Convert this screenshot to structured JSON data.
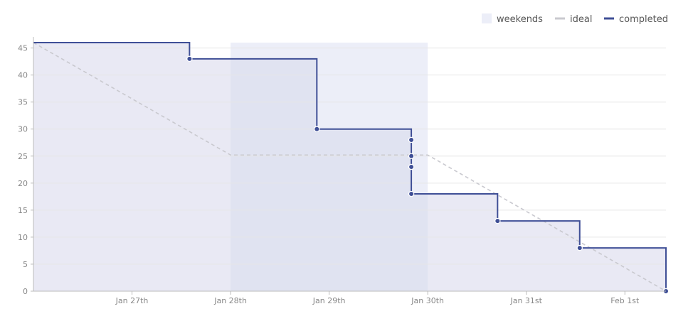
{
  "chart_data": {
    "type": "line",
    "title": "",
    "xlabel": "",
    "ylabel": "",
    "ylim": [
      0,
      46
    ],
    "yticks": [
      0,
      5,
      10,
      15,
      20,
      25,
      30,
      35,
      40,
      45
    ],
    "xlim": [
      "2019-01-26T00:00",
      "2019-02-01T10:00"
    ],
    "xticks": [
      {
        "x": "2019-01-27T00:00",
        "label": "Jan 27th"
      },
      {
        "x": "2019-01-28T00:00",
        "label": "Jan 28th"
      },
      {
        "x": "2019-01-29T00:00",
        "label": "Jan 29th"
      },
      {
        "x": "2019-01-30T00:00",
        "label": "Jan 30th"
      },
      {
        "x": "2019-01-31T00:00",
        "label": "Jan 31st"
      },
      {
        "x": "2019-02-01T00:00",
        "label": "Feb 1st"
      }
    ],
    "grid": true,
    "legend_position": "top-right",
    "legend": [
      {
        "key": "weekends",
        "label": "weekends"
      },
      {
        "key": "ideal",
        "label": "ideal"
      },
      {
        "key": "completed",
        "label": "completed"
      }
    ],
    "weekends": [
      {
        "start": "2019-01-28T00:00",
        "end": "2019-01-30T00:00"
      }
    ],
    "ideal": {
      "name": "ideal",
      "style": "dashed",
      "points": [
        {
          "x": "2019-01-26T00:00",
          "y": 46
        },
        {
          "x": "2019-01-28T00:00",
          "y": 25.2
        },
        {
          "x": "2019-01-30T00:00",
          "y": 25.2
        },
        {
          "x": "2019-02-01T10:00",
          "y": 0
        }
      ]
    },
    "completed": {
      "name": "completed",
      "style": "step",
      "start": {
        "x": "2019-01-26T00:00",
        "y": 46
      },
      "points": [
        {
          "x": "2019-01-27T14:00",
          "y": 43
        },
        {
          "x": "2019-01-28T21:00",
          "y": 30
        },
        {
          "x": "2019-01-29T20:00",
          "y": 28
        },
        {
          "x": "2019-01-29T20:00",
          "y": 25
        },
        {
          "x": "2019-01-29T20:00",
          "y": 23
        },
        {
          "x": "2019-01-29T20:00",
          "y": 18
        },
        {
          "x": "2019-01-30T17:00",
          "y": 13
        },
        {
          "x": "2019-01-31T13:00",
          "y": 8
        },
        {
          "x": "2019-02-01T10:00",
          "y": 0
        }
      ]
    },
    "colors": {
      "completed": "#3f4f96",
      "area_fill": "#e9e9f4",
      "weekend_band": "#eceef8",
      "weekend_overlap": "#e0e3f1",
      "ideal": "#c9c9cf",
      "grid": "#e6e6e6",
      "axis": "#bbbbbb"
    }
  }
}
